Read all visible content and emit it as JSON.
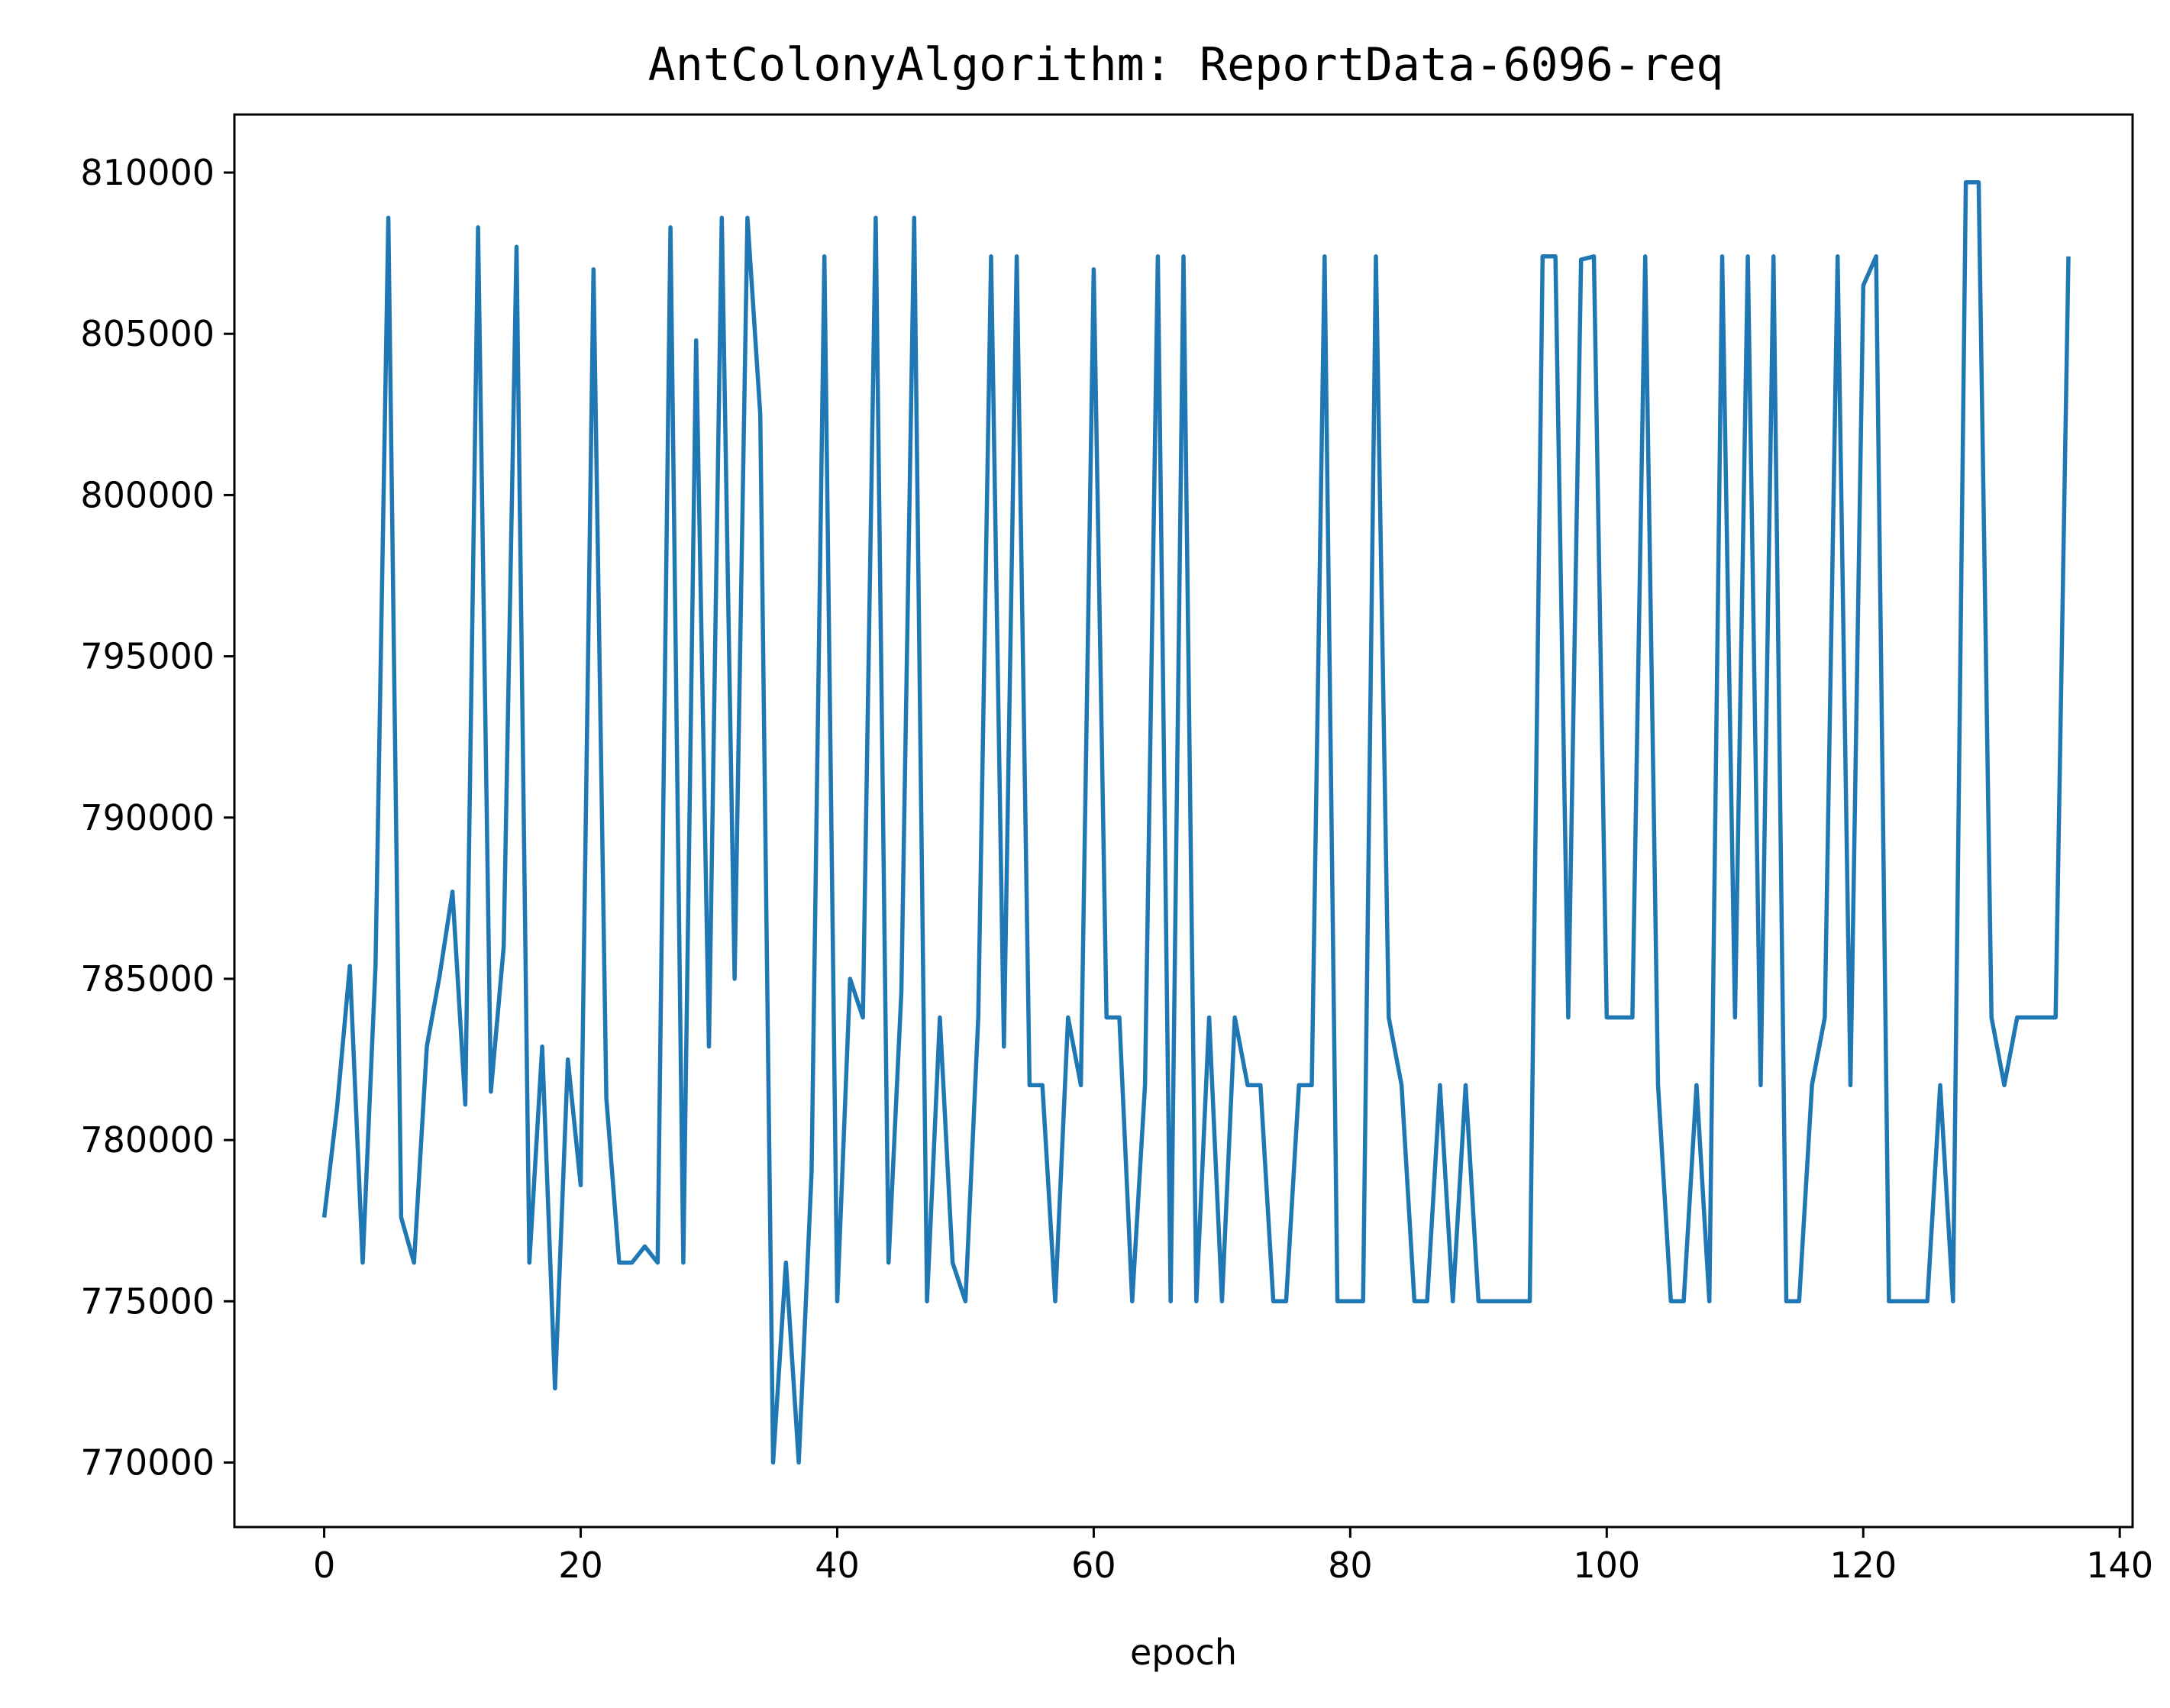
{
  "chart_data": {
    "type": "line",
    "title": "AntColonyAlgorithm: ReportData-6096-req",
    "xlabel": "epoch",
    "ylabel": "",
    "xlim": [
      -7,
      141
    ],
    "ylim": [
      768000,
      811800
    ],
    "xticks": [
      0,
      20,
      40,
      60,
      80,
      100,
      120,
      140
    ],
    "yticks": [
      770000,
      775000,
      780000,
      785000,
      790000,
      795000,
      800000,
      805000,
      810000
    ],
    "grid": false,
    "legend": "none",
    "series": [
      {
        "color": "#1f77b4",
        "x": [
          0,
          1,
          2,
          3,
          4,
          5,
          6,
          7,
          8,
          9,
          10,
          11,
          12,
          13,
          14,
          15,
          16,
          17,
          18,
          19,
          20,
          21,
          22,
          23,
          24,
          25,
          26,
          27,
          28,
          29,
          30,
          31,
          32,
          33,
          34,
          35,
          36,
          37,
          38,
          39,
          40,
          41,
          42,
          43,
          44,
          45,
          46,
          47,
          48,
          49,
          50,
          51,
          52,
          53,
          54,
          55,
          56,
          57,
          58,
          59,
          60,
          61,
          62,
          63,
          64,
          65,
          66,
          67,
          68,
          69,
          70,
          71,
          72,
          73,
          74,
          75,
          76,
          77,
          78,
          79,
          80,
          81,
          82,
          83,
          84,
          85,
          86,
          87,
          88,
          89,
          90,
          91,
          92,
          93,
          94,
          95,
          96,
          97,
          98,
          99,
          100,
          101,
          102,
          103,
          104,
          105,
          106,
          107,
          108,
          109,
          110,
          111,
          112,
          113,
          114,
          115,
          116,
          117,
          118,
          119,
          120,
          121,
          122,
          123,
          124,
          125,
          126,
          127,
          128,
          129,
          130,
          131,
          132,
          133,
          134,
          135,
          136
        ],
        "values": [
          777600,
          781000,
          785400,
          776200,
          785400,
          808600,
          777600,
          776200,
          782900,
          785100,
          787700,
          781100,
          808300,
          781500,
          786000,
          807700,
          776200,
          782900,
          772300,
          782500,
          778600,
          807000,
          781300,
          776200,
          776200,
          776700,
          776200,
          808300,
          776200,
          804800,
          782900,
          808600,
          785000,
          808600,
          802500,
          770000,
          776200,
          770000,
          779000,
          807400,
          775000,
          785000,
          783800,
          808600,
          776200,
          784600,
          808600,
          775000,
          783800,
          776200,
          775000,
          783800,
          807400,
          782900,
          807400,
          781700,
          781700,
          775000,
          783800,
          781700,
          807000,
          783800,
          783800,
          775000,
          781700,
          807400,
          775000,
          807400,
          775000,
          783800,
          775000,
          783800,
          781700,
          781700,
          775000,
          775000,
          781700,
          781700,
          807400,
          775000,
          775000,
          775000,
          807400,
          783800,
          781700,
          775000,
          775000,
          781700,
          775000,
          781700,
          775000,
          775000,
          775000,
          775000,
          775000,
          807400,
          807400,
          783800,
          807300,
          807400,
          783800,
          783800,
          783800,
          807400,
          781700,
          775000,
          775000,
          781700,
          775000,
          807400,
          783800,
          807400,
          781700,
          807400,
          775000,
          775000,
          781700,
          783800,
          807400,
          781700,
          806500,
          807400,
          775000,
          775000,
          775000,
          775000,
          781700,
          775000,
          809700,
          809700,
          783800,
          781700,
          783800,
          783800,
          783800,
          783800,
          807400
        ]
      }
    ]
  }
}
